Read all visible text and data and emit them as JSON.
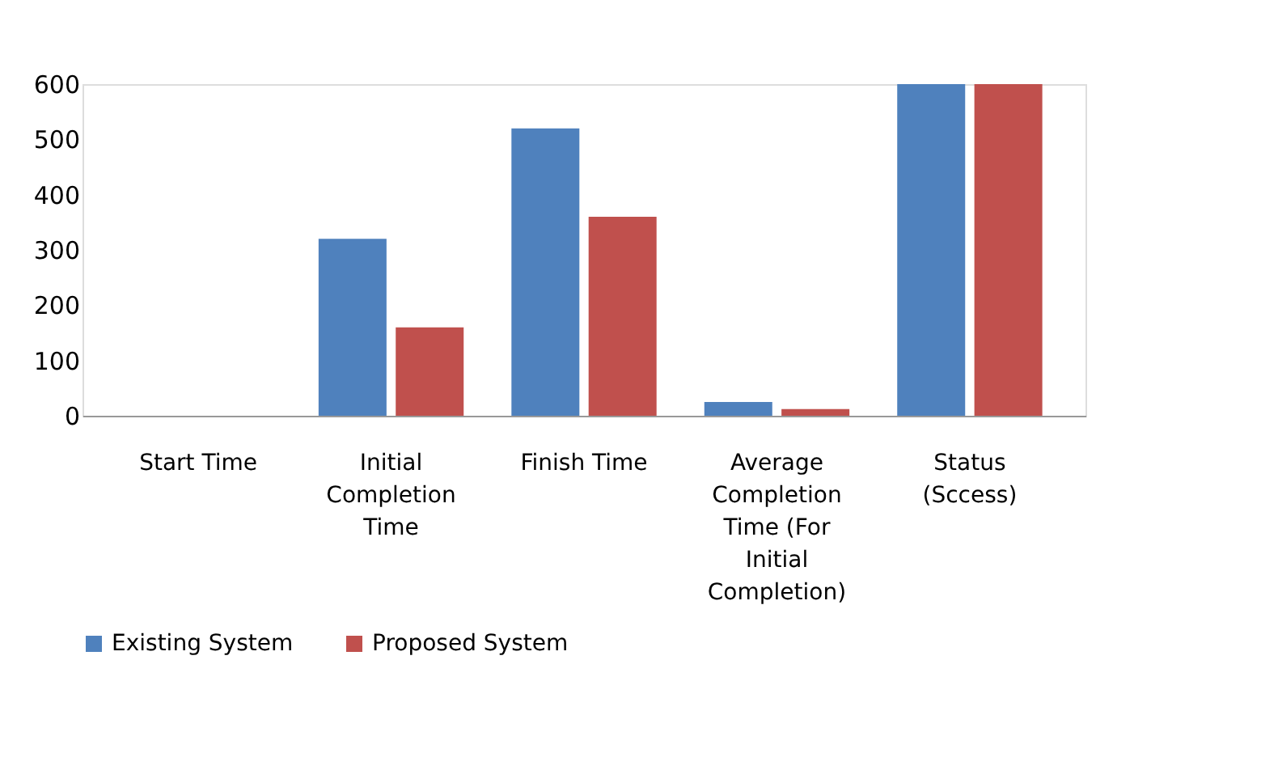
{
  "chart_data": {
    "type": "bar",
    "categories": [
      "Start Time",
      "Initial Completion Time",
      "Finish Time",
      "Average Completion Time (For Initial Completion)",
      "Status (Sccess)"
    ],
    "series": [
      {
        "name": "Existing System",
        "color": "#4f81bd",
        "values": [
          0,
          320,
          520,
          25,
          600
        ]
      },
      {
        "name": "Proposed System",
        "color": "#c0504d",
        "values": [
          0,
          160,
          360,
          12,
          600
        ]
      }
    ],
    "ylim": [
      0,
      600
    ],
    "yticks": [
      0,
      100,
      200,
      300,
      400,
      500,
      600
    ],
    "grid": false,
    "legend": "bottom"
  }
}
